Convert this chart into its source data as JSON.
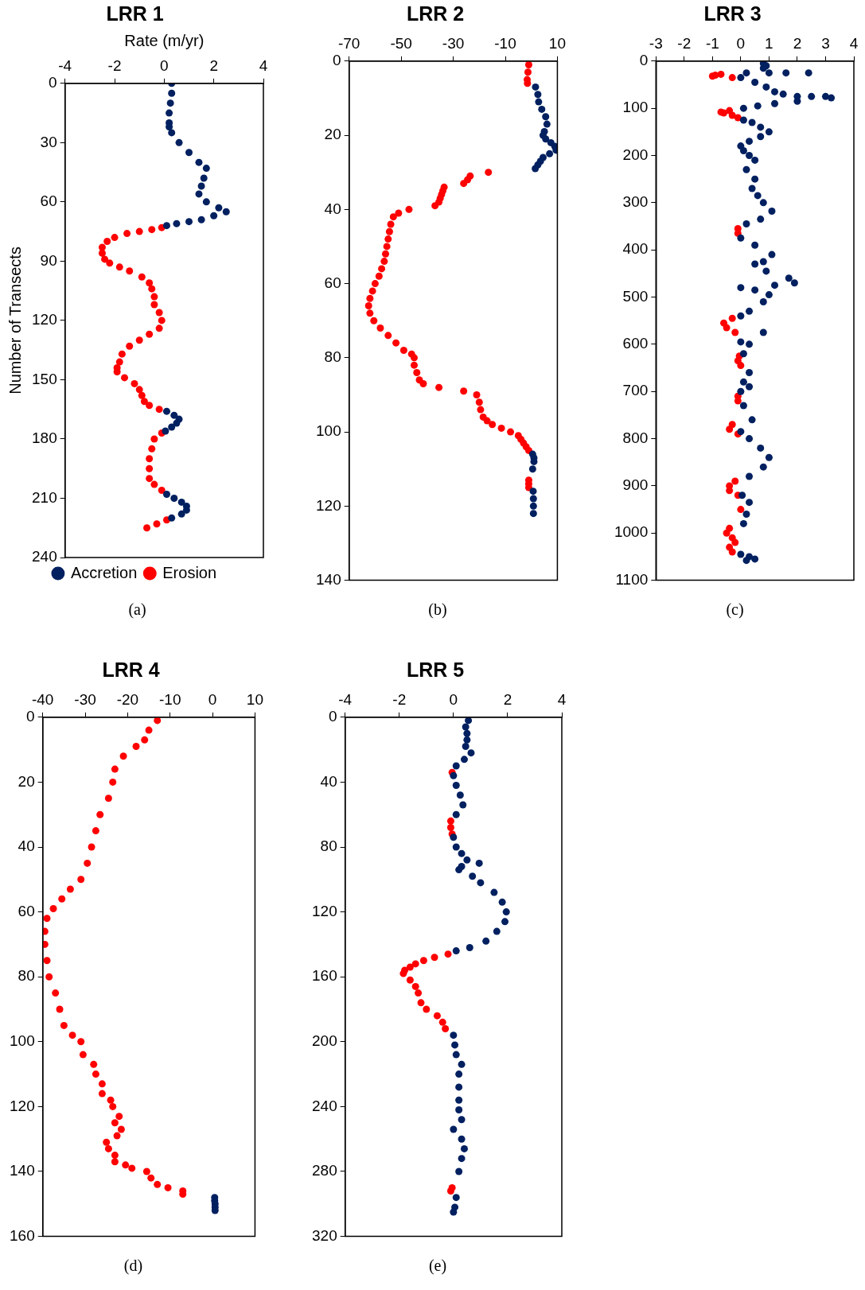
{
  "chart_data": [
    {
      "type": "scatter",
      "title": "LRR 1",
      "xlabel": "Rate (m/yr)",
      "ylabel": "Number of Transects",
      "xlim": [
        -4,
        4
      ],
      "xticks": [
        -4,
        -2,
        0,
        2,
        4
      ],
      "ylim": [
        240,
        0
      ],
      "yticks": [
        0,
        30,
        60,
        90,
        120,
        150,
        180,
        210,
        240
      ],
      "grid": false,
      "legend": "bottom",
      "marker": "circle",
      "annotations": [
        "(a)"
      ],
      "series": [
        {
          "name": "Accretion",
          "color": "#002060",
          "x": [
            0.3,
            0.3,
            0.25,
            0.2,
            0.2,
            0.2,
            0.3,
            0.6,
            1.0,
            1.4,
            1.7,
            1.6,
            1.5,
            1.4,
            1.7,
            2.2,
            2.5,
            2.0,
            1.5,
            1.0,
            0.5,
            0.1,
            0.1,
            0.4,
            0.6,
            0.5,
            0.3,
            0.05,
            0.1,
            0.4,
            0.7,
            0.9,
            0.9,
            0.7,
            0.3
          ],
          "values": [
            0,
            5,
            10,
            15,
            20,
            22,
            25,
            30,
            35,
            40,
            43,
            48,
            52,
            56,
            60,
            63,
            65,
            67,
            69,
            70,
            71,
            72,
            166,
            168,
            170,
            172,
            174,
            176,
            208,
            210,
            212,
            214,
            216,
            218,
            220
          ]
        },
        {
          "name": "Erosion",
          "color": "#ff0000",
          "x": [
            -0.1,
            -0.5,
            -1.0,
            -1.5,
            -2.0,
            -2.3,
            -2.5,
            -2.5,
            -2.4,
            -2.2,
            -1.8,
            -1.4,
            -0.9,
            -0.6,
            -0.5,
            -0.4,
            -0.4,
            -0.2,
            -0.1,
            -0.2,
            -0.6,
            -1.0,
            -1.4,
            -1.7,
            -1.8,
            -1.9,
            -1.9,
            -1.6,
            -1.2,
            -1.0,
            -0.9,
            -0.8,
            -0.6,
            -0.2,
            -0.1,
            -0.4,
            -0.5,
            -0.6,
            -0.6,
            -0.6,
            -0.4,
            -0.1,
            0.1,
            -0.3,
            -0.7
          ],
          "values": [
            73,
            74,
            75,
            76,
            78,
            80,
            83,
            86,
            89,
            91,
            93,
            95,
            98,
            101,
            104,
            108,
            112,
            116,
            120,
            124,
            127,
            130,
            133,
            137,
            141,
            144,
            146,
            149,
            152,
            155,
            158,
            161,
            163,
            165,
            177,
            180,
            185,
            190,
            195,
            200,
            203,
            206,
            221,
            223,
            225
          ]
        }
      ]
    },
    {
      "type": "scatter",
      "title": "LRR 2",
      "xlim": [
        -70,
        10
      ],
      "xticks": [
        -70,
        -50,
        -30,
        -10,
        10
      ],
      "ylim": [
        140,
        0
      ],
      "yticks": [
        0,
        20,
        40,
        60,
        80,
        100,
        120,
        140
      ],
      "grid": false,
      "marker": "circle",
      "annotations": [
        "(b)"
      ],
      "series": [
        {
          "color": "#002060",
          "x": [
            1.6,
            2.5,
            2.8,
            4,
            5.5,
            6,
            5,
            4.5,
            5.5,
            7.5,
            9,
            9.5,
            7,
            4.5,
            3.5,
            2.5,
            1.5,
            0.5,
            1,
            1,
            0.5,
            0.7,
            0.8,
            0.8,
            0.8
          ],
          "values": [
            7,
            9,
            11,
            13,
            15,
            17,
            19,
            20,
            21,
            22,
            23,
            24,
            25,
            26,
            27,
            28,
            29,
            106,
            107,
            108,
            110,
            116,
            118,
            120,
            122
          ]
        },
        {
          "color": "#ff0000",
          "x": [
            -1,
            -1.3,
            -1.6,
            -1.5,
            -16.5,
            -23.5,
            -24.5,
            -26,
            -33.5,
            -34,
            -34.5,
            -35,
            -35.5,
            -37,
            -47,
            -51,
            -53,
            -54,
            -54.5,
            -55,
            -55.5,
            -56,
            -56.5,
            -57.5,
            -58.5,
            -60,
            -61,
            -62,
            -62.5,
            -62,
            -60.5,
            -58,
            -55,
            -52,
            -49,
            -46,
            -45,
            -45,
            -44,
            -43,
            -41.5,
            -35.5,
            -26,
            -21,
            -20,
            -19.5,
            -18.5,
            -17,
            -15,
            -11.5,
            -8,
            -5,
            -4,
            -3,
            -2,
            -1,
            -1,
            -1,
            -1
          ],
          "values": [
            1,
            3,
            5,
            6,
            30,
            31,
            32,
            33,
            34,
            35,
            36,
            37,
            38,
            39,
            40,
            41,
            42,
            44,
            46,
            48,
            50,
            52,
            54,
            56,
            58,
            60,
            62,
            64,
            66,
            68,
            70,
            72,
            74,
            76,
            78,
            79,
            80,
            82,
            84,
            86,
            87,
            88,
            89,
            90,
            92,
            94,
            96,
            97,
            98,
            99,
            100,
            101,
            102,
            103,
            104,
            105,
            113,
            114,
            115
          ]
        }
      ]
    },
    {
      "type": "scatter",
      "title": "LRR 3",
      "xlim": [
        -3,
        4
      ],
      "xticks": [
        -3,
        -2,
        -1,
        0,
        1,
        2,
        3,
        4
      ],
      "ylim": [
        1100,
        0
      ],
      "yticks": [
        0,
        100,
        200,
        300,
        400,
        500,
        600,
        700,
        800,
        900,
        1000,
        1100
      ],
      "grid": false,
      "marker": "circle",
      "annotations": [
        "(c)"
      ],
      "series": [
        {
          "color": "#002060",
          "x": [
            0.8,
            0.9,
            0.8,
            1.0,
            1.6,
            2.4,
            0.2,
            0.0,
            0.5,
            0.9,
            1.2,
            1.5,
            2.0,
            2.5,
            3.0,
            3.2,
            2.0,
            1.2,
            0.6,
            0.1,
            0.1,
            0.4,
            0.7,
            1.0,
            0.7,
            0.3,
            0.0,
            0.1,
            0.3,
            0.5,
            0.2,
            0.5,
            0.4,
            0.6,
            0.8,
            1.1,
            0.7,
            0.2,
            0.0,
            0.5,
            1.1,
            0.8,
            0.5,
            0.9,
            1.7,
            1.9,
            1.2,
            0.0,
            0.5,
            1.0,
            0.8,
            0.3,
            0.0,
            0.8,
            0.0,
            0.3,
            0.1,
            0.3,
            0.1,
            0.3,
            0.0,
            0.1,
            0.4,
            0.0,
            0.3,
            0.7,
            1.0,
            0.8,
            0.3,
            0.05,
            0.3,
            0.2,
            0.1,
            0.0,
            0.3,
            0.5,
            0.2
          ],
          "values": [
            5,
            10,
            15,
            25,
            25,
            25,
            25,
            35,
            45,
            55,
            65,
            70,
            75,
            75,
            75,
            78,
            85,
            90,
            95,
            100,
            125,
            130,
            140,
            150,
            160,
            170,
            180,
            190,
            200,
            210,
            230,
            250,
            270,
            285,
            300,
            318,
            335,
            345,
            375,
            390,
            410,
            425,
            430,
            445,
            460,
            470,
            475,
            480,
            485,
            495,
            510,
            530,
            540,
            575,
            595,
            600,
            620,
            660,
            680,
            690,
            700,
            730,
            760,
            785,
            800,
            820,
            840,
            860,
            880,
            920,
            935,
            960,
            980,
            1045,
            1050,
            1055,
            1058
          ]
        },
        {
          "color": "#ff0000",
          "x": [
            -0.7,
            -0.9,
            -1.0,
            -0.3,
            -0.4,
            -0.7,
            -0.6,
            -0.3,
            -0.1,
            -0.1,
            -0.1,
            -0.3,
            -0.6,
            -0.5,
            -0.2,
            -0.05,
            -0.1,
            0.0,
            -0.1,
            -0.1,
            -0.3,
            -0.4,
            -0.1,
            -0.2,
            -0.4,
            -0.4,
            -0.1,
            0.0,
            -0.4,
            -0.5,
            -0.3,
            -0.2,
            -0.4,
            -0.3
          ],
          "values": [
            28,
            30,
            32,
            35,
            105,
            108,
            110,
            115,
            120,
            355,
            365,
            545,
            555,
            565,
            575,
            625,
            635,
            645,
            710,
            720,
            770,
            780,
            790,
            890,
            900,
            910,
            920,
            950,
            990,
            1000,
            1010,
            1020,
            1030,
            1040
          ]
        }
      ]
    },
    {
      "type": "scatter",
      "title": "LRR 4",
      "xlim": [
        -40,
        10
      ],
      "xticks": [
        -40,
        -30,
        -20,
        -10,
        0,
        10
      ],
      "ylim": [
        160,
        0
      ],
      "yticks": [
        0,
        20,
        40,
        60,
        80,
        100,
        120,
        140,
        160
      ],
      "grid": false,
      "marker": "circle",
      "annotations": [
        "(d)"
      ],
      "series": [
        {
          "color": "#002060",
          "x": [
            0.5,
            0.5,
            0.6,
            0.6,
            0.6
          ],
          "values": [
            148,
            149,
            150,
            151,
            152
          ]
        },
        {
          "color": "#ff0000",
          "x": [
            -13,
            -15,
            -16,
            -18,
            -21,
            -23,
            -23.5,
            -24.5,
            -26.5,
            -27.5,
            -28.5,
            -29.5,
            -31,
            -33.5,
            -35.5,
            -37.5,
            -39,
            -39.5,
            -39.5,
            -39,
            -38.5,
            -37,
            -36,
            -35,
            -33,
            -31,
            -30.5,
            -28,
            -27.5,
            -26,
            -26,
            -24,
            -23.5,
            -22,
            -23,
            -21.5,
            -22.5,
            -25,
            -24.5,
            -23,
            -23,
            -20.5,
            -19,
            -15.5,
            -14.5,
            -13,
            -10.5,
            -7,
            -7
          ],
          "values": [
            1,
            4,
            7,
            9,
            12,
            16,
            20,
            25,
            30,
            35,
            40,
            45,
            50,
            53,
            56,
            59,
            62,
            66,
            70,
            75,
            80,
            85,
            90,
            95,
            98,
            100,
            104,
            107,
            110,
            113,
            116,
            118,
            120,
            123,
            125,
            127,
            129,
            131,
            133,
            135,
            137,
            138,
            139,
            140,
            142,
            144,
            145,
            146,
            147
          ]
        }
      ]
    },
    {
      "type": "scatter",
      "title": "LRR 5",
      "xlim": [
        -4,
        4
      ],
      "xticks": [
        -4,
        -2,
        0,
        2,
        4
      ],
      "ylim": [
        320,
        0
      ],
      "yticks": [
        0,
        40,
        80,
        120,
        160,
        200,
        240,
        280,
        320
      ],
      "grid": false,
      "marker": "circle",
      "annotations": [
        "(e)"
      ],
      "series": [
        {
          "color": "#002060",
          "x": [
            0.55,
            0.45,
            0.5,
            0.5,
            0.45,
            0.65,
            0.4,
            0.1,
            0.0,
            0.1,
            0.25,
            0.35,
            0.1,
            0.0,
            0.1,
            0.3,
            0.5,
            0.95,
            0.3,
            0.2,
            0.7,
            1.0,
            1.5,
            1.8,
            1.95,
            1.9,
            1.6,
            1.2,
            0.6,
            0.1,
            0.0,
            0.05,
            0.1,
            0.3,
            0.2,
            0.2,
            0.2,
            0.2,
            0.3,
            0.0,
            0.3,
            0.4,
            0.3,
            0.2,
            0.1,
            0.05,
            0.0
          ],
          "values": [
            2,
            6,
            10,
            14,
            18,
            22,
            26,
            30,
            36,
            42,
            48,
            54,
            60,
            74,
            80,
            84,
            88,
            90,
            92,
            94,
            98,
            102,
            108,
            114,
            120,
            126,
            132,
            138,
            142,
            144,
            196,
            202,
            208,
            214,
            220,
            228,
            236,
            242,
            248,
            254,
            260,
            266,
            272,
            280,
            296,
            302,
            305
          ]
        },
        {
          "color": "#ff0000",
          "x": [
            -0.05,
            -0.1,
            -0.1,
            -0.05,
            -0.2,
            -0.7,
            -1.1,
            -1.4,
            -1.6,
            -1.8,
            -1.85,
            -1.6,
            -1.4,
            -1.3,
            -1.2,
            -1.0,
            -0.6,
            -0.4,
            -0.3,
            -0.05,
            -0.1
          ],
          "values": [
            34,
            64,
            68,
            72,
            146,
            148,
            150,
            152,
            154,
            156,
            158,
            162,
            166,
            170,
            176,
            180,
            184,
            188,
            192,
            290,
            292
          ]
        }
      ]
    }
  ]
}
